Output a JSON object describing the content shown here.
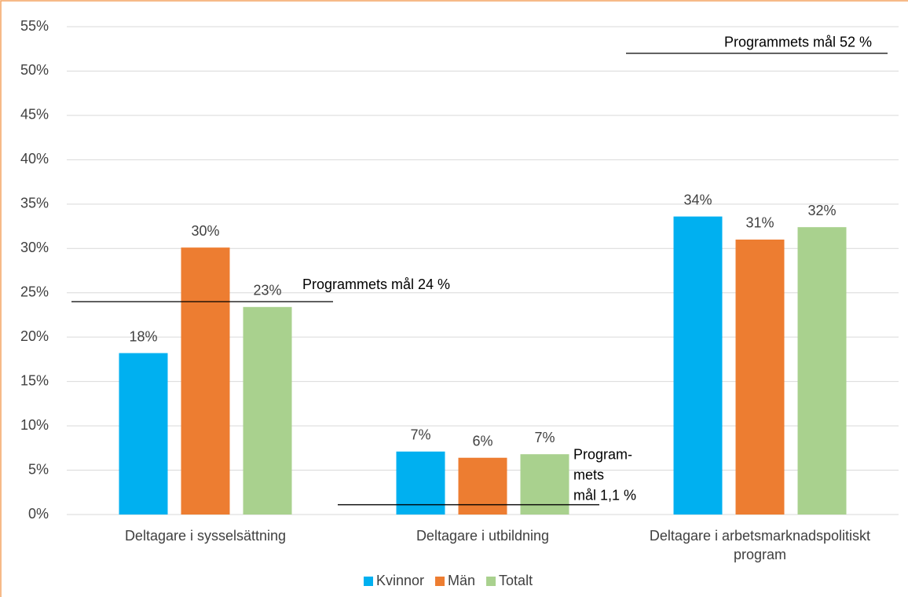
{
  "chart_data": {
    "type": "bar",
    "categories": [
      "Deltagare i sysselsättning",
      "Deltagare i utbildning",
      "Deltagare i arbetsmarknadspolitiskt program"
    ],
    "series": [
      {
        "name": "Kvinnor",
        "color": "#00b0f0",
        "values": [
          18.2,
          7.1,
          33.6
        ],
        "value_labels": [
          "18%",
          "7%",
          "34%"
        ]
      },
      {
        "name": "Män",
        "color": "#ed7d31",
        "values": [
          30.1,
          6.4,
          31.0
        ],
        "value_labels": [
          "30%",
          "6%",
          "31%"
        ]
      },
      {
        "name": "Totalt",
        "color": "#a9d18e",
        "values": [
          23.4,
          6.8,
          32.4
        ],
        "value_labels": [
          "23%",
          "7%",
          "32%"
        ]
      }
    ],
    "ylim": [
      0,
      55
    ],
    "yticks": [
      {
        "value": 0,
        "label": "0%"
      },
      {
        "value": 5,
        "label": "5%"
      },
      {
        "value": 10,
        "label": "10%"
      },
      {
        "value": 15,
        "label": "15%"
      },
      {
        "value": 20,
        "label": "20%"
      },
      {
        "value": 25,
        "label": "25%"
      },
      {
        "value": 30,
        "label": "30%"
      },
      {
        "value": 35,
        "label": "35%"
      },
      {
        "value": 40,
        "label": "40%"
      },
      {
        "value": 45,
        "label": "45%"
      },
      {
        "value": 50,
        "label": "50%"
      },
      {
        "value": 55,
        "label": "55%"
      }
    ],
    "grid": true,
    "legend": "bottom",
    "targets": [
      {
        "value": 24,
        "label": [
          "Programmets mål 24 %"
        ]
      },
      {
        "value": 1.1,
        "label": [
          "Program-",
          "mets",
          "mål 1,1 %"
        ]
      },
      {
        "value": 52,
        "label": [
          "Programmets mål 52 %"
        ]
      }
    ]
  }
}
